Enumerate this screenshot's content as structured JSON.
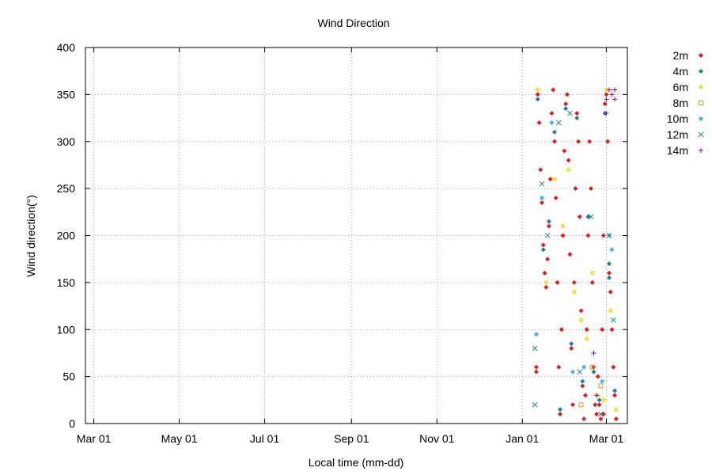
{
  "chart_data": {
    "type": "scatter",
    "title": "Wind Direction",
    "xlabel": "Local time (mm-dd)",
    "ylabel": "Wind direction(°)",
    "x_ticks": [
      "Mar 01",
      "May 01",
      "Jul 01",
      "Sep 01",
      "Nov 01",
      "Jan 01",
      "Mar 01"
    ],
    "x_tick_dates": [
      "2023-03-01",
      "2023-05-01",
      "2023-07-01",
      "2023-09-01",
      "2023-11-01",
      "2024-01-01",
      "2024-03-01"
    ],
    "xlim": [
      "2023-02-23",
      "2024-03-16"
    ],
    "y_ticks": [
      0,
      50,
      100,
      150,
      200,
      250,
      300,
      350,
      400
    ],
    "ylim": [
      0,
      400
    ],
    "grid": true,
    "legend_position": "outside-right",
    "series": [
      {
        "name": "2m",
        "marker": "diamond",
        "color": "#e41a1c",
        "points": [
          [
            "2024-01-12",
            350
          ],
          [
            "2024-01-13",
            320
          ],
          [
            "2024-01-14",
            270
          ],
          [
            "2024-01-15",
            235
          ],
          [
            "2024-01-16",
            190
          ],
          [
            "2024-01-17",
            160
          ],
          [
            "2024-01-18",
            145
          ],
          [
            "2024-01-19",
            175
          ],
          [
            "2024-01-20",
            210
          ],
          [
            "2024-01-21",
            260
          ],
          [
            "2024-01-22",
            330
          ],
          [
            "2024-01-23",
            355
          ],
          [
            "2024-01-24",
            300
          ],
          [
            "2024-01-25",
            240
          ],
          [
            "2024-01-26",
            150
          ],
          [
            "2024-01-27",
            60
          ],
          [
            "2024-01-28",
            10
          ],
          [
            "2024-01-29",
            100
          ],
          [
            "2024-01-30",
            200
          ],
          [
            "2024-01-31",
            290
          ],
          [
            "2024-02-01",
            340
          ],
          [
            "2024-02-02",
            350
          ],
          [
            "2024-02-03",
            280
          ],
          [
            "2024-02-04",
            180
          ],
          [
            "2024-02-05",
            80
          ],
          [
            "2024-02-06",
            20
          ],
          [
            "2024-02-07",
            150
          ],
          [
            "2024-02-08",
            250
          ],
          [
            "2024-02-09",
            330
          ],
          [
            "2024-02-10",
            300
          ],
          [
            "2024-02-11",
            220
          ],
          [
            "2024-02-12",
            120
          ],
          [
            "2024-02-13",
            40
          ],
          [
            "2024-02-14",
            5
          ],
          [
            "2024-02-15",
            30
          ],
          [
            "2024-02-16",
            100
          ],
          [
            "2024-02-17",
            200
          ],
          [
            "2024-02-18",
            300
          ],
          [
            "2024-02-19",
            250
          ],
          [
            "2024-02-20",
            150
          ],
          [
            "2024-02-21",
            60
          ],
          [
            "2024-02-22",
            20
          ],
          [
            "2024-02-23",
            10
          ],
          [
            "2024-02-24",
            50
          ],
          [
            "2024-02-25",
            20
          ],
          [
            "2024-02-26",
            5
          ],
          [
            "2024-02-27",
            100
          ],
          [
            "2024-02-28",
            200
          ],
          [
            "2024-02-29",
            340
          ],
          [
            "2024-03-01",
            350
          ],
          [
            "2024-03-02",
            300
          ],
          [
            "2024-03-03",
            160
          ],
          [
            "2024-03-04",
            140
          ],
          [
            "2024-03-05",
            100
          ],
          [
            "2024-03-06",
            60
          ],
          [
            "2024-03-07",
            30
          ],
          [
            "2024-03-08",
            5
          ],
          [
            "2024-01-11",
            55
          ],
          [
            "2024-01-11",
            60
          ],
          [
            "2024-02-28",
            10
          ]
        ]
      },
      {
        "name": "4m",
        "marker": "diamond",
        "color": "#1a7fa0",
        "points": [
          [
            "2024-01-12",
            345
          ],
          [
            "2024-01-16",
            185
          ],
          [
            "2024-01-20",
            215
          ],
          [
            "2024-01-24",
            310
          ],
          [
            "2024-01-28",
            15
          ],
          [
            "2024-02-01",
            335
          ],
          [
            "2024-02-05",
            85
          ],
          [
            "2024-02-09",
            325
          ],
          [
            "2024-02-13",
            45
          ],
          [
            "2024-02-17",
            220
          ],
          [
            "2024-02-21",
            55
          ],
          [
            "2024-02-25",
            25
          ],
          [
            "2024-02-29",
            330
          ],
          [
            "2024-03-03",
            155
          ],
          [
            "2024-03-07",
            35
          ],
          [
            "2024-03-03",
            170
          ]
        ]
      },
      {
        "name": "6m",
        "marker": "square",
        "color": "#f0e442",
        "points": [
          [
            "2024-01-12",
            355
          ],
          [
            "2024-01-18",
            150
          ],
          [
            "2024-01-24",
            260
          ],
          [
            "2024-01-30",
            210
          ],
          [
            "2024-02-03",
            270
          ],
          [
            "2024-02-07",
            140
          ],
          [
            "2024-02-12",
            110
          ],
          [
            "2024-02-16",
            90
          ],
          [
            "2024-02-20",
            160
          ],
          [
            "2024-02-24",
            30
          ],
          [
            "2024-02-28",
            25
          ],
          [
            "2024-03-01",
            355
          ],
          [
            "2024-03-04",
            120
          ],
          [
            "2024-03-08",
            15
          ]
        ]
      },
      {
        "name": "8m",
        "marker": "open-square",
        "color": "#d4a017",
        "points": [
          [
            "2024-02-12",
            20
          ],
          [
            "2024-02-20",
            60
          ],
          [
            "2024-02-26",
            40
          ]
        ]
      },
      {
        "name": "10m",
        "marker": "asterisk",
        "color": "#3fa8d9",
        "points": [
          [
            "2024-01-11",
            95
          ],
          [
            "2024-01-15",
            240
          ],
          [
            "2024-01-22",
            320
          ],
          [
            "2024-02-06",
            55
          ],
          [
            "2024-02-14",
            60
          ],
          [
            "2024-02-27",
            45
          ],
          [
            "2024-03-03",
            200
          ],
          [
            "2024-03-05",
            185
          ]
        ]
      },
      {
        "name": "12m",
        "marker": "x",
        "color": "#1a8c8c",
        "points": [
          [
            "2024-01-10",
            80
          ],
          [
            "2024-01-10",
            20
          ],
          [
            "2024-01-15",
            255
          ],
          [
            "2024-01-19",
            200
          ],
          [
            "2024-01-27",
            320
          ],
          [
            "2024-02-04",
            330
          ],
          [
            "2024-02-11",
            55
          ],
          [
            "2024-02-19",
            220
          ],
          [
            "2024-02-26",
            10
          ],
          [
            "2024-03-03",
            200
          ],
          [
            "2024-03-06",
            110
          ]
        ]
      },
      {
        "name": "14m",
        "marker": "plus",
        "color": "#8b00b0",
        "points": [
          [
            "2024-02-21",
            75
          ],
          [
            "2024-02-23",
            30
          ],
          [
            "2024-03-01",
            330
          ],
          [
            "2024-03-01",
            345
          ],
          [
            "2024-03-03",
            355
          ],
          [
            "2024-03-05",
            350
          ],
          [
            "2024-03-07",
            345
          ],
          [
            "2024-03-07",
            355
          ]
        ]
      }
    ]
  }
}
